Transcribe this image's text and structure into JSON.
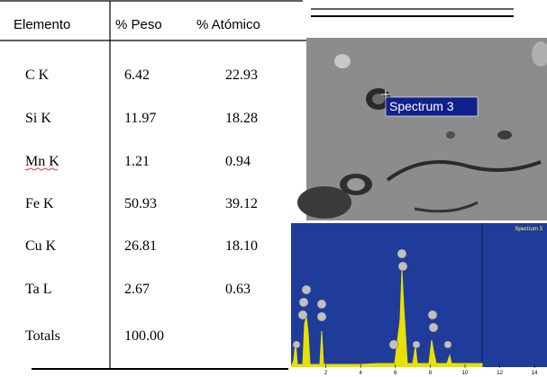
{
  "header": {
    "columns": [
      "Elemento",
      "% Peso",
      "% Atómico"
    ]
  },
  "table": {
    "rows": [
      [
        "C K",
        "6.42",
        "22.93"
      ],
      [
        "Si K",
        "11.97",
        "18.28"
      ],
      [
        "Mn K",
        "1.21",
        "0.94"
      ],
      [
        "Fe K",
        "50.93",
        "39.12"
      ],
      [
        "Cu K",
        "26.81",
        "18.10"
      ],
      [
        "Ta L",
        "2.67",
        "0.63"
      ],
      [
        "Totals",
        "100.00"
      ]
    ]
  },
  "sem_image": {
    "label": "Spectrum 3"
  },
  "spectrum": {
    "title": "Spectrum 3",
    "xticks": [
      2,
      4,
      6,
      8,
      10,
      12,
      14
    ]
  }
}
